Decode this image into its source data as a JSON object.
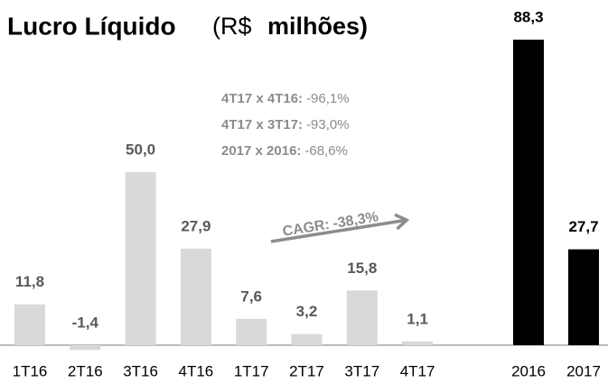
{
  "chart_data": [
    {
      "type": "bar",
      "title": "Lucro Líquido",
      "unit_parts": [
        "(R$",
        "milhões)"
      ],
      "categories": [
        "1T16",
        "2T16",
        "3T16",
        "4T16",
        "1T17",
        "2T17",
        "3T17",
        "4T17"
      ],
      "values": [
        11.8,
        -1.4,
        50.0,
        27.9,
        7.6,
        3.2,
        15.8,
        1.1
      ],
      "value_labels": [
        "11,8",
        "-1,4",
        "50,0",
        "27,9",
        "7,6",
        "3,2",
        "15,8",
        "1,1"
      ],
      "color": "#d9d9d9",
      "annotations": [
        {
          "label": "4T17 x 4T16:",
          "value": -96.1,
          "value_label": "-96,1%"
        },
        {
          "label": "4T17 x 3T17:",
          "value": -93.0,
          "value_label": "-93,0%"
        },
        {
          "label": "2017 x 2016:",
          "value": -68.6,
          "value_label": "-68,6%"
        }
      ],
      "cagr": {
        "label": "CAGR:",
        "value": -38.3,
        "value_label": "-38,3%"
      }
    },
    {
      "type": "bar",
      "categories": [
        "2016",
        "2017"
      ],
      "values": [
        88.3,
        27.7
      ],
      "value_labels": [
        "88,3",
        "27,7"
      ],
      "color": "#000000"
    }
  ]
}
